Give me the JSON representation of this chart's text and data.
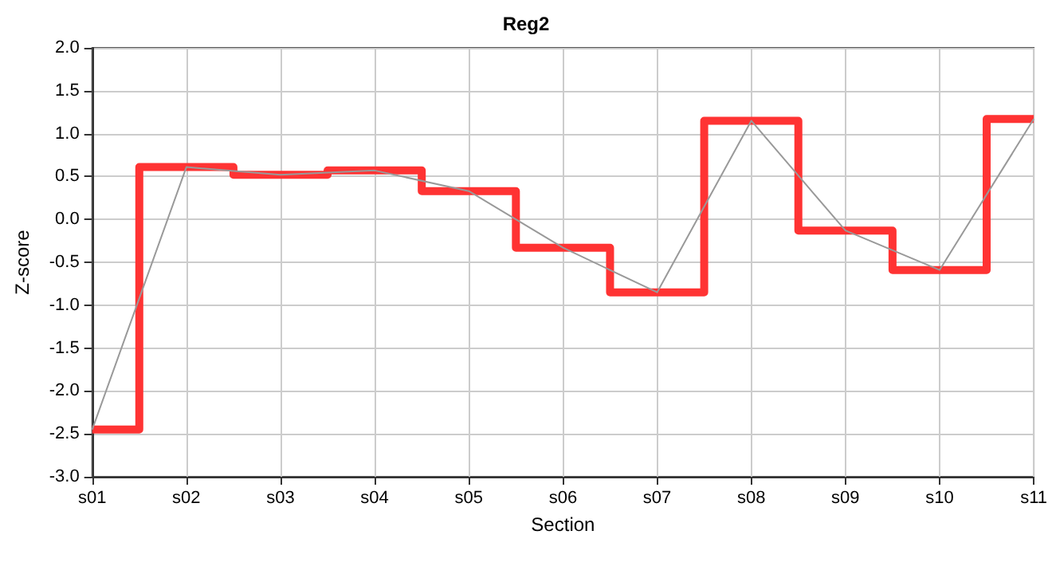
{
  "chart_data": {
    "type": "step",
    "title": "Reg2",
    "xlabel": "Section",
    "ylabel": "Z-score",
    "categories": [
      "s01",
      "s02",
      "s03",
      "s04",
      "s05",
      "s06",
      "s07",
      "s08",
      "s09",
      "s10",
      "s11"
    ],
    "series": [
      {
        "color": "#ff3333",
        "values": [
          -2.45,
          0.61,
          0.52,
          0.57,
          0.33,
          -0.33,
          -0.85,
          1.15,
          -0.13,
          -0.59,
          1.17
        ]
      },
      {
        "type": "line",
        "color": "#999999",
        "values": [
          -2.45,
          0.61,
          0.52,
          0.57,
          0.33,
          -0.33,
          -0.85,
          1.15,
          -0.13,
          -0.59,
          1.17
        ]
      }
    ],
    "ylim": [
      -3,
      2
    ],
    "yticks": [
      {
        "value": -3,
        "label": "-3.0"
      },
      {
        "value": -2.5,
        "label": "-2.5"
      },
      {
        "value": -2,
        "label": "-2.0"
      },
      {
        "value": -1.5,
        "label": "-1.5"
      },
      {
        "value": -1,
        "label": "-1.0"
      },
      {
        "value": -0.5,
        "label": "-0.5"
      },
      {
        "value": 0,
        "label": "0.0"
      },
      {
        "value": 0.5,
        "label": "0.5"
      },
      {
        "value": 1,
        "label": "1.0"
      },
      {
        "value": 1.5,
        "label": "1.5"
      },
      {
        "value": 2,
        "label": "2.0"
      }
    ],
    "grid": true,
    "marker": "none"
  }
}
